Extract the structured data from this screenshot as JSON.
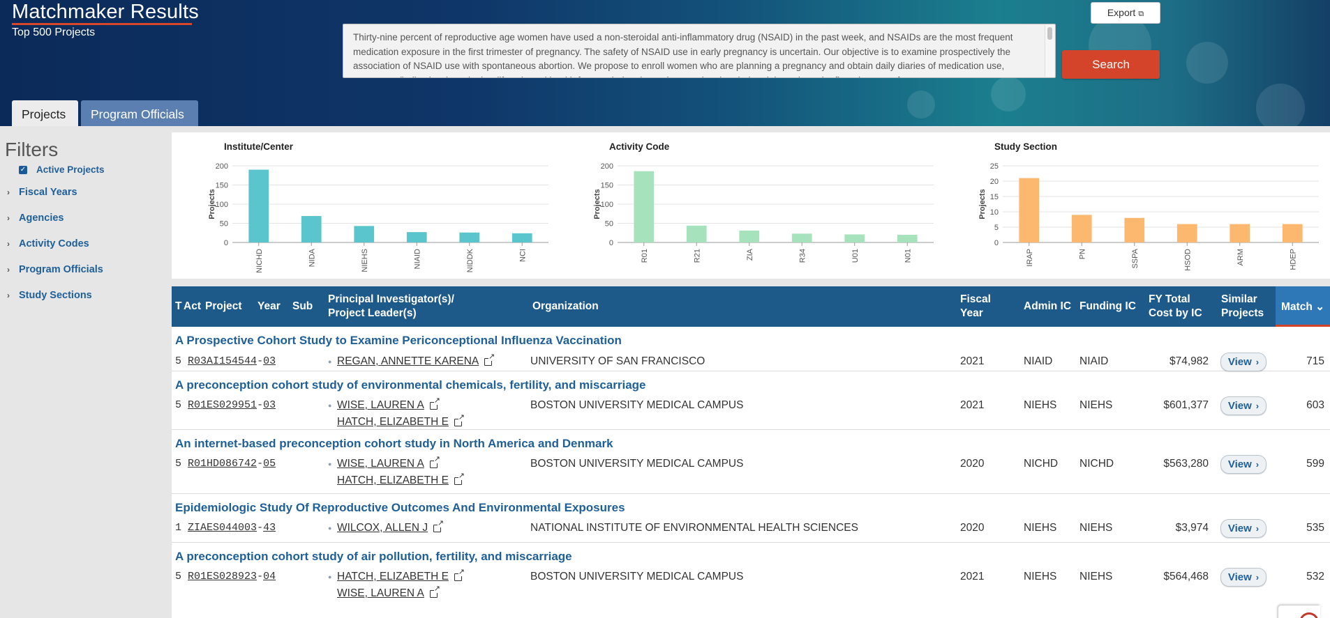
{
  "header": {
    "title": "Matchmaker Results",
    "subtitle": "Top 500 Projects",
    "query_text": "Thirty-nine percent of reproductive age women have used a non-steroidal anti-inflammatory drug (NSAID) in the past week, and NSAIDs are the most frequent medication exposure in the first trimester of pregnancy. The safety of NSAID use in early pregnancy is uncertain. Our objective is to examine prospectively the association of NSAID use with spontaneous abortion. We propose to enroll women who are planning a pregnancy and obtain daily diaries of medication use, symptoms (indications), and other lifestyle and health factors during the periconceptional period and throughout the first trimester of pregnancy.",
    "search_label": "Search",
    "export_label": "Export",
    "colors": {
      "accent": "#d3442a",
      "header_dark": "#0f3668"
    }
  },
  "tabs": [
    {
      "label": "Projects",
      "active": true
    },
    {
      "label": "Program Officials",
      "active": false
    }
  ],
  "sidebar": {
    "title": "Filters",
    "active_projects_label": "Active Projects",
    "active_projects_checked": true,
    "items": [
      {
        "label": "Fiscal Years"
      },
      {
        "label": "Agencies"
      },
      {
        "label": "Activity Codes"
      },
      {
        "label": "Program Officials"
      },
      {
        "label": "Study Sections"
      }
    ]
  },
  "chart_data": [
    {
      "type": "bar",
      "title": "Institute/Center",
      "ylabel": "Projects",
      "categories": [
        "NICHD",
        "NIDA",
        "NIEHS",
        "NIAID",
        "NIDDK",
        "NCI"
      ],
      "values": [
        190,
        69,
        43,
        27,
        26,
        24
      ],
      "ylim": [
        0,
        200
      ],
      "yticks": [
        0,
        50,
        100,
        150,
        200
      ],
      "color": "#5bc5cd"
    },
    {
      "type": "bar",
      "title": "Activity Code",
      "ylabel": "Projects",
      "categories": [
        "R01",
        "R21",
        "ZIA",
        "R34",
        "U01",
        "N01"
      ],
      "values": [
        186,
        44,
        31,
        23,
        21,
        20
      ],
      "ylim": [
        0,
        200
      ],
      "yticks": [
        0,
        50,
        100,
        150,
        200
      ],
      "color": "#a6e3bd"
    },
    {
      "type": "bar",
      "title": "Study Section",
      "ylabel": "Projects",
      "categories": [
        "IRAP",
        "PN",
        "SSPA",
        "HSOD",
        "ARM",
        "HDEP"
      ],
      "values": [
        21,
        9,
        8,
        6,
        6,
        6
      ],
      "ylim": [
        0,
        25
      ],
      "yticks": [
        0,
        5,
        10,
        15,
        20,
        25
      ],
      "color": "#fdb870"
    }
  ],
  "table": {
    "headers": {
      "t": "T",
      "act": "Act",
      "project": "Project",
      "year": "Year",
      "sub": "Sub",
      "pi_line1": "Principal Investigator(s)/",
      "pi_line2": "Project Leader(s)",
      "organization": "Organization",
      "fy_line1": "Fiscal",
      "fy_line2": "Year",
      "admin_ic": "Admin IC",
      "funding_ic": "Funding IC",
      "cost_line1": "FY Total",
      "cost_line2": "Cost by IC",
      "similar_line1": "Similar",
      "similar_line2": "Projects",
      "match": "Match",
      "match_arrow": "⌄"
    },
    "view_label": "View",
    "rows": [
      {
        "title": "A Prospective Cohort Study to Examine Periconceptional Influenza Vaccination",
        "type": "5",
        "project_number": "R03AI154544",
        "support_year": "03",
        "pis": [
          "REGAN, ANNETTE KARENA"
        ],
        "organization": "UNIVERSITY OF SAN FRANCISCO",
        "fiscal_year": "2021",
        "admin_ic": "NIAID",
        "funding_ic": "NIAID",
        "cost": "$74,982",
        "match": "715"
      },
      {
        "title": "A preconception cohort study of environmental chemicals, fertility, and miscarriage",
        "type": "5",
        "project_number": "R01ES029951",
        "support_year": "03",
        "pis": [
          "WISE, LAUREN A",
          "HATCH, ELIZABETH E"
        ],
        "organization": "BOSTON UNIVERSITY MEDICAL CAMPUS",
        "fiscal_year": "2021",
        "admin_ic": "NIEHS",
        "funding_ic": "NIEHS",
        "cost": "$601,377",
        "match": "603"
      },
      {
        "title": "An internet-based preconception cohort study in North America and Denmark",
        "type": "5",
        "project_number": "R01HD086742",
        "support_year": "05",
        "pis": [
          "WISE, LAUREN A",
          "HATCH, ELIZABETH E"
        ],
        "organization": "BOSTON UNIVERSITY MEDICAL CAMPUS",
        "fiscal_year": "2020",
        "admin_ic": "NICHD",
        "funding_ic": "NICHD",
        "cost": "$563,280",
        "match": "599"
      },
      {
        "title": "Epidemiologic Study Of Reproductive Outcomes And Environmental Exposures",
        "type": "1",
        "project_number": "ZIAES044003",
        "support_year": "43",
        "pis": [
          "WILCOX, ALLEN J"
        ],
        "organization": "NATIONAL INSTITUTE OF ENVIRONMENTAL HEALTH SCIENCES",
        "fiscal_year": "2020",
        "admin_ic": "NIEHS",
        "funding_ic": "NIEHS",
        "cost": "$3,974",
        "match": "535"
      },
      {
        "title": "A preconception cohort study of air pollution, fertility, and miscarriage",
        "type": "5",
        "project_number": "R01ES028923",
        "support_year": "04",
        "pis": [
          "HATCH, ELIZABETH E",
          "WISE, LAUREN A"
        ],
        "organization": "BOSTON UNIVERSITY MEDICAL CAMPUS",
        "fiscal_year": "2021",
        "admin_ic": "NIEHS",
        "funding_ic": "NIEHS",
        "cost": "$564,468",
        "match": "532"
      }
    ]
  }
}
